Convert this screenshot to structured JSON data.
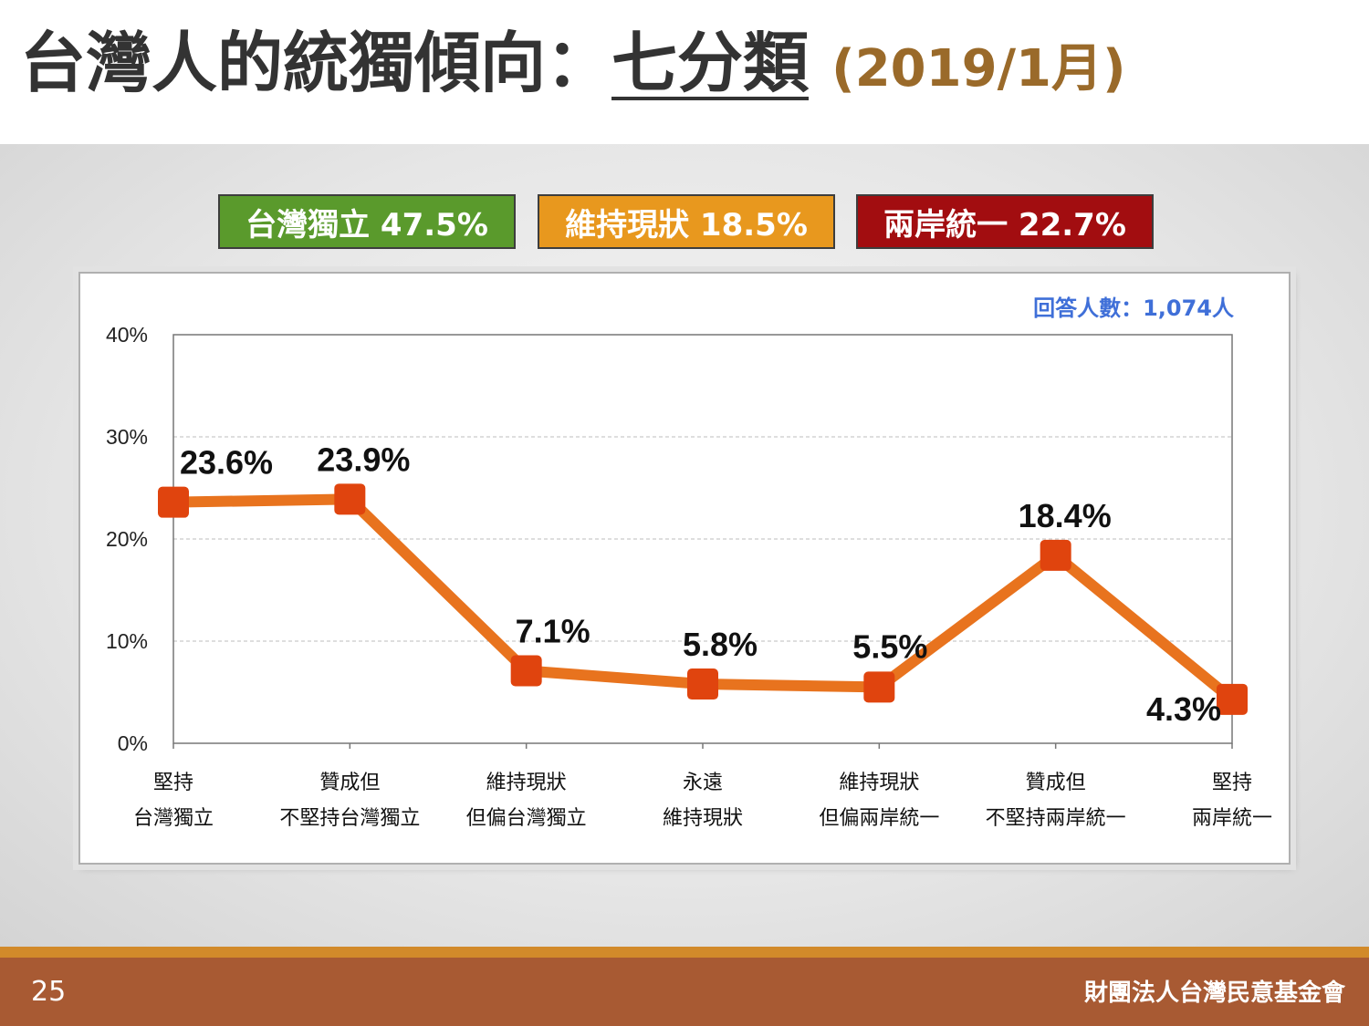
{
  "slide": {
    "title_main": "台灣人的統獨傾向：",
    "title_underlined": "七分類",
    "title_date": "(2019/1月)",
    "page_number": "25",
    "organization": "財團法人台灣民意基金會"
  },
  "summary": [
    {
      "label": "台灣獨立 47.5%",
      "color": "#5a9a2c"
    },
    {
      "label": "維持現狀 18.5%",
      "color": "#e8981e"
    },
    {
      "label": "兩岸統一 22.7%",
      "color": "#a20d10"
    }
  ],
  "respondents": "回答人數：1,074人",
  "chart_data": {
    "type": "line",
    "categories": [
      [
        "堅持",
        "台灣獨立"
      ],
      [
        "贊成但",
        "不堅持台灣獨立"
      ],
      [
        "維持現狀",
        "但偏台灣獨立"
      ],
      [
        "永遠",
        "維持現狀"
      ],
      [
        "維持現狀",
        "但偏兩岸統一"
      ],
      [
        "贊成但",
        "不堅持兩岸統一"
      ],
      [
        "堅持",
        "兩岸統一"
      ]
    ],
    "values": [
      23.6,
      23.9,
      7.1,
      5.8,
      5.5,
      18.4,
      4.3
    ],
    "data_labels": [
      "23.6%",
      "23.9%",
      "7.1%",
      "5.8%",
      "5.5%",
      "18.4%",
      "4.3%"
    ],
    "ylim": [
      0,
      40
    ],
    "yticks": [
      0,
      10,
      20,
      30,
      40
    ],
    "ytick_labels": [
      "0%",
      "10%",
      "20%",
      "30%",
      "40%"
    ],
    "grid": true,
    "line_color": "#e8731e",
    "marker_color": "#e0440e",
    "label_color": "#111111"
  }
}
